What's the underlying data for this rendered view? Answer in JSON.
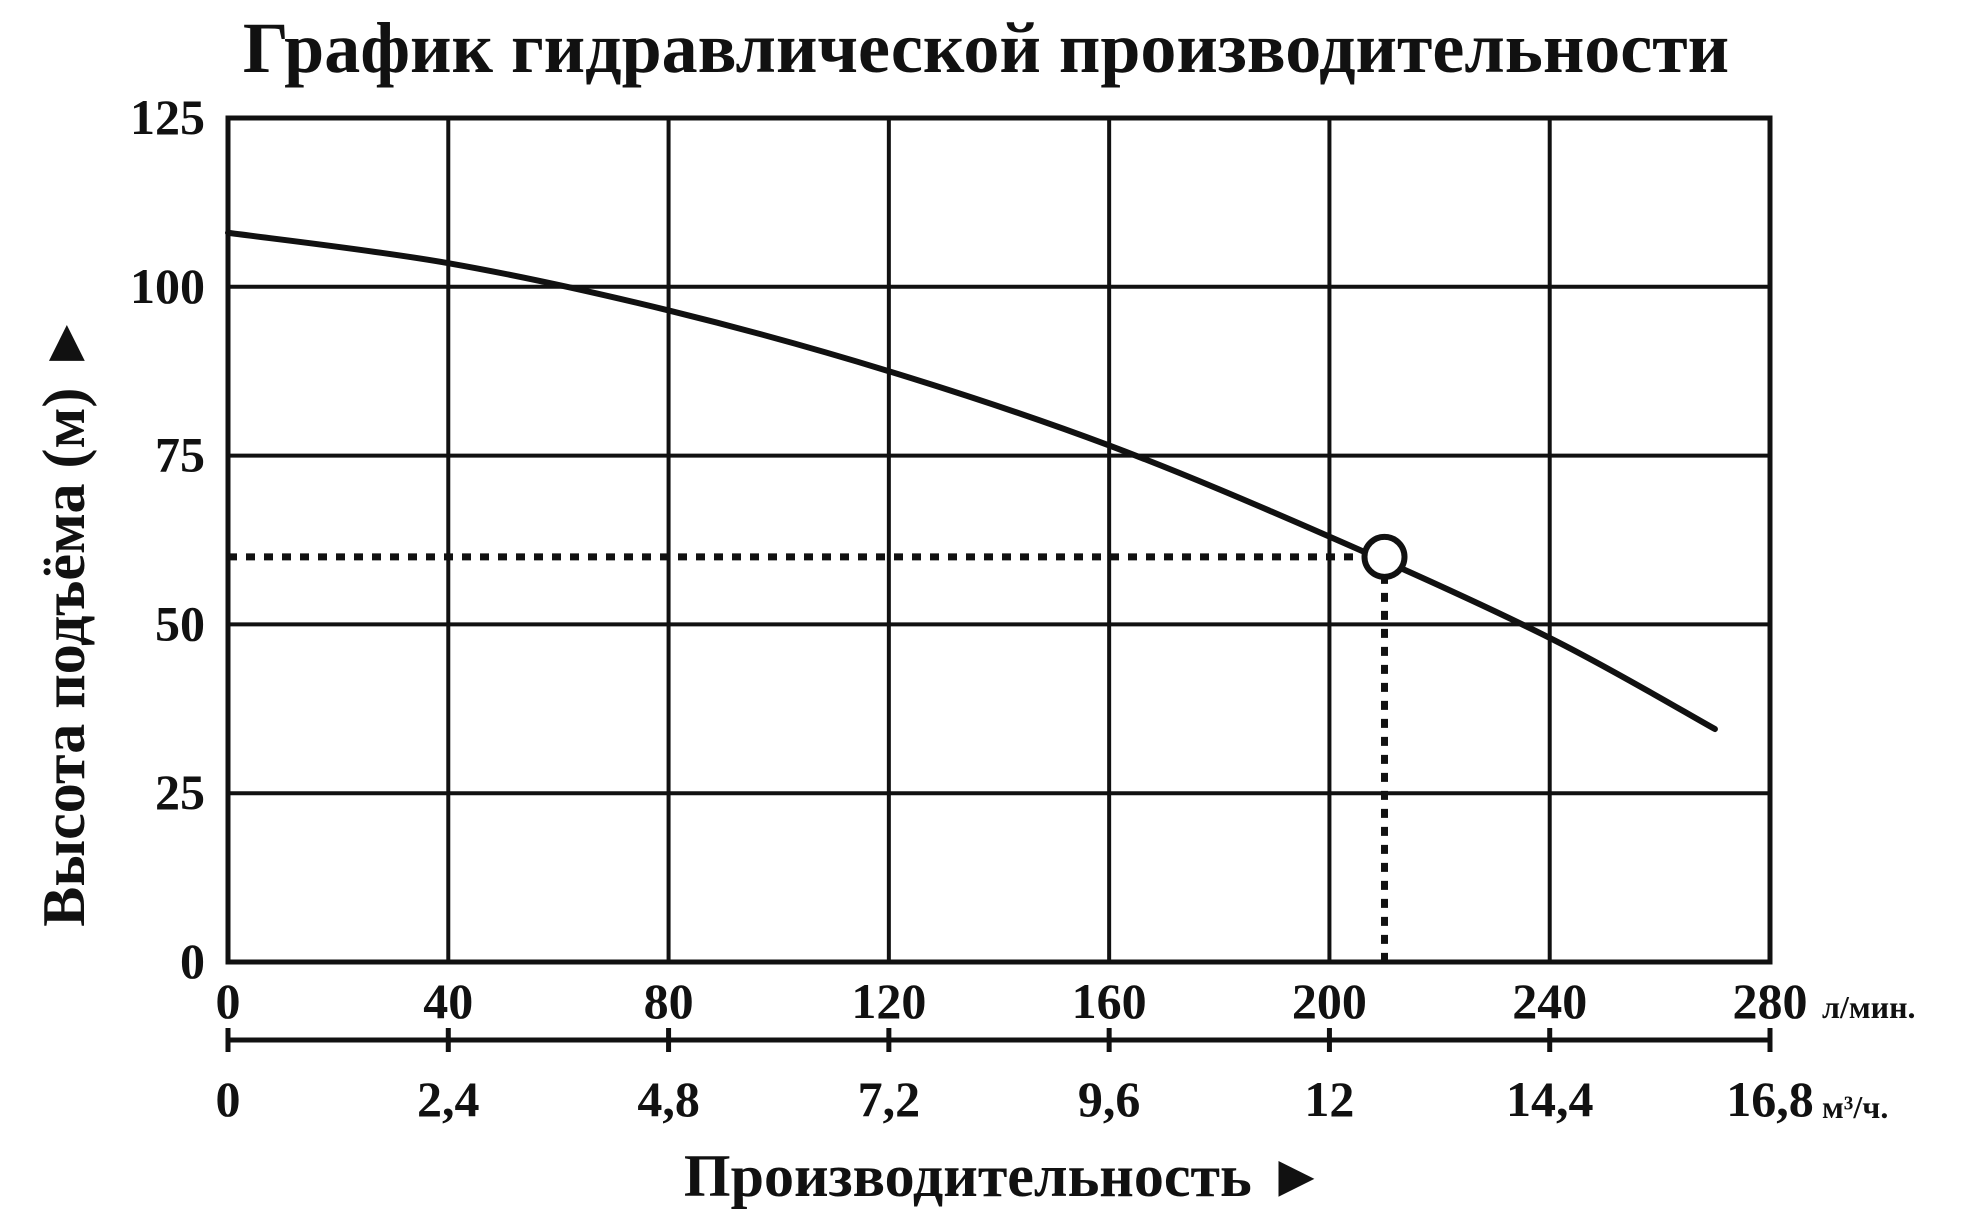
{
  "chart_data": {
    "type": "line",
    "title": "График гидравлической производительности",
    "xlabel": "Производительность ►",
    "ylabel": "Высота подъёма (м) ►",
    "xlim": [
      0,
      280
    ],
    "ylim": [
      0,
      125
    ],
    "grid": true,
    "y_ticks": [
      "0",
      "25",
      "50",
      "75",
      "100",
      "125"
    ],
    "x_ticks_primary": [
      "0",
      "40",
      "80",
      "120",
      "160",
      "200",
      "240",
      "280"
    ],
    "x_unit_primary": "л/мин.",
    "x_ticks_secondary": [
      "0",
      "2,4",
      "4,8",
      "7,2",
      "9,6",
      "12",
      "14,4",
      "16,8"
    ],
    "x_unit_secondary": "м³/ч.",
    "series": [
      {
        "x": [
          0,
          40,
          80,
          120,
          160,
          200,
          240,
          270
        ],
        "y": [
          108,
          103.5,
          96.5,
          87.5,
          76.5,
          63,
          48,
          34.5
        ]
      }
    ],
    "operating_point": {
      "x": 210,
      "y": 60
    },
    "colors": {
      "line": "#111111",
      "grid": "#111111",
      "background": "#ffffff"
    }
  }
}
